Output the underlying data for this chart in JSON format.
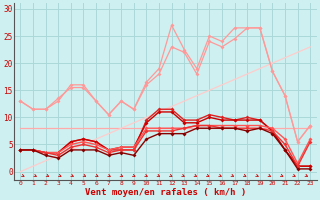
{
  "x": [
    0,
    1,
    2,
    3,
    4,
    5,
    6,
    7,
    8,
    9,
    10,
    11,
    12,
    13,
    14,
    15,
    16,
    17,
    18,
    19,
    20,
    21,
    22,
    23
  ],
  "background_color": "#cff0f0",
  "grid_color": "#aad8d8",
  "xlabel": "Vent moyen/en rafales ( km/h )",
  "xlabel_color": "#cc0000",
  "tick_color": "#cc0000",
  "yticks": [
    0,
    5,
    10,
    15,
    20,
    25,
    30
  ],
  "ylim": [
    -1.5,
    31
  ],
  "xlim": [
    -0.5,
    23.5
  ],
  "series": [
    {
      "y": [
        13,
        11.5,
        11.5,
        13,
        16,
        16,
        13,
        10.5,
        13,
        11.5,
        16,
        18,
        23,
        22,
        18,
        24,
        23,
        24.5,
        26.5,
        26.5,
        18.5,
        14,
        5.5,
        8.5
      ],
      "color": "#ff9999",
      "marker": "D",
      "markersize": 2.0,
      "linewidth": 0.9,
      "zorder": 3
    },
    {
      "y": [
        13,
        11.5,
        11.5,
        13.5,
        15.5,
        15.5,
        13,
        10.5,
        13,
        11.5,
        16.5,
        19,
        27,
        22.5,
        19,
        25,
        24,
        26.5,
        26.5,
        26.5,
        18.5,
        14,
        5.5,
        8.5
      ],
      "color": "#ff9999",
      "marker": "D",
      "markersize": 2.0,
      "linewidth": 0.9,
      "zorder": 3
    },
    {
      "y": [
        8,
        8,
        8,
        8,
        8,
        8,
        8,
        8,
        8,
        8,
        8,
        8,
        8,
        8,
        8,
        8,
        8,
        8,
        8,
        8,
        8,
        8,
        8,
        8
      ],
      "color": "#ffaaaa",
      "marker": null,
      "markersize": 0,
      "linewidth": 0.9,
      "zorder": 2
    },
    {
      "y": [
        0,
        1.0,
        2.0,
        3.0,
        4.0,
        5.0,
        6.0,
        7.0,
        8.0,
        9.0,
        10.0,
        11.0,
        12.0,
        13.0,
        14.0,
        15.0,
        16.0,
        17.0,
        18.0,
        19.0,
        20.0,
        21.0,
        22.0,
        23.0
      ],
      "color": "#ffcccc",
      "marker": null,
      "markersize": 0,
      "linewidth": 0.9,
      "zorder": 2
    },
    {
      "y": [
        4,
        4,
        3.5,
        3.5,
        5.5,
        6,
        5.5,
        4,
        4,
        4,
        9.5,
        11.5,
        11.5,
        9.5,
        9.5,
        10.5,
        10,
        9.5,
        10,
        9.5,
        7.5,
        4,
        1,
        1
      ],
      "color": "#dd2222",
      "marker": "D",
      "markersize": 2.0,
      "linewidth": 1.0,
      "zorder": 5
    },
    {
      "y": [
        4,
        4,
        3.5,
        3.5,
        5.5,
        6,
        5.5,
        4,
        4.5,
        4.5,
        9,
        11,
        11,
        9,
        9,
        10,
        9.5,
        9.5,
        9.5,
        9.5,
        7.5,
        4,
        1,
        1
      ],
      "color": "#cc0000",
      "marker": "D",
      "markersize": 2.0,
      "linewidth": 1.0,
      "zorder": 5
    },
    {
      "y": [
        4,
        4,
        3.5,
        3.5,
        5,
        5.5,
        5,
        4,
        4.5,
        4.5,
        8,
        8,
        8,
        8,
        8.5,
        8.5,
        8.5,
        8.5,
        8.5,
        8.5,
        8,
        6,
        1.5,
        6
      ],
      "color": "#ff5555",
      "marker": "D",
      "markersize": 2.0,
      "linewidth": 1.0,
      "zorder": 5
    },
    {
      "y": [
        4,
        4,
        3.5,
        3,
        4.5,
        5,
        4.5,
        3.5,
        4,
        4,
        7.5,
        7.5,
        7.5,
        8,
        8.5,
        8.5,
        8,
        8,
        8,
        8,
        7.5,
        5,
        1,
        5.5
      ],
      "color": "#ee3333",
      "marker": "D",
      "markersize": 2.0,
      "linewidth": 1.0,
      "zorder": 5
    },
    {
      "y": [
        4,
        4,
        3,
        2.5,
        4,
        4,
        4,
        3,
        3.5,
        3,
        6,
        7,
        7,
        7,
        8,
        8,
        8,
        8,
        7.5,
        8,
        7,
        4,
        0.5,
        0.5
      ],
      "color": "#880000",
      "marker": "D",
      "markersize": 2.0,
      "linewidth": 1.0,
      "zorder": 5
    }
  ],
  "arrow_color": "#cc0000"
}
